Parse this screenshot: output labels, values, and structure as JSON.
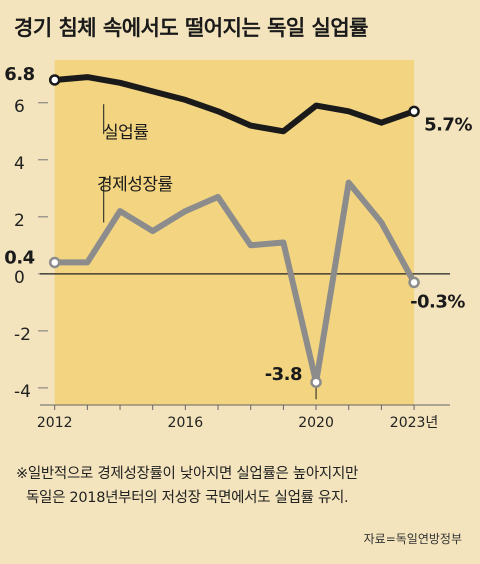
{
  "title": "경기 침체 속에서도 떨어지는 독일 실업률",
  "chart_data": {
    "type": "line",
    "x": [
      2012,
      2013,
      2014,
      2015,
      2016,
      2017,
      2018,
      2019,
      2020,
      2021,
      2022,
      2023
    ],
    "series": [
      {
        "name": "실업률",
        "color": "#1a1a1a",
        "values": [
          6.8,
          6.9,
          6.7,
          6.4,
          6.1,
          5.7,
          5.2,
          5.0,
          5.9,
          5.7,
          5.3,
          5.7
        ]
      },
      {
        "name": "경제성장률",
        "color": "#8c8c8c",
        "values": [
          0.4,
          0.4,
          2.2,
          1.5,
          2.2,
          2.7,
          1.0,
          1.1,
          -3.8,
          3.2,
          1.8,
          -0.3
        ]
      }
    ],
    "ylim": [
      -4.6,
      7.5
    ],
    "yticks": [
      6,
      4,
      2,
      0,
      -2,
      -4
    ],
    "ytick_labels": [
      "6",
      "4",
      "2",
      "0",
      "-2",
      "-4"
    ],
    "xticks": [
      2012,
      2016,
      2020,
      2023
    ],
    "xtick_labels": [
      "2012",
      "2016",
      "2020",
      "2023년"
    ],
    "data_labels": [
      {
        "series": 0,
        "x": 2012,
        "text": "6.8"
      },
      {
        "series": 0,
        "x": 2023,
        "text": "5.7%"
      },
      {
        "series": 1,
        "x": 2012,
        "text": "0.4"
      },
      {
        "series": 1,
        "x": 2020,
        "text": "-3.8"
      },
      {
        "series": 1,
        "x": 2023,
        "text": "-0.3%"
      }
    ],
    "shaded_range": [
      2012,
      2023
    ]
  },
  "note": {
    "line1": "※일반적으로 경제성장률이 낮아지면 실업률은 높아지지만",
    "line2": "독일은 2018년부터의 저성장 국면에서도 실업률 유지."
  },
  "source": "자료=독일연방정부"
}
